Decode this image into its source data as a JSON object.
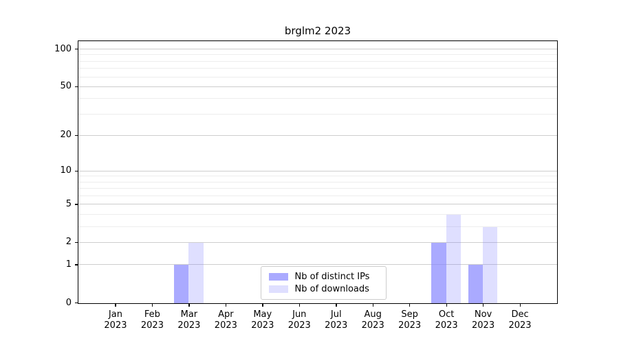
{
  "chart_data": {
    "type": "bar",
    "title": "brglm2 2023",
    "categories": [
      "Jan",
      "Feb",
      "Mar",
      "Apr",
      "May",
      "Jun",
      "Jul",
      "Aug",
      "Sep",
      "Oct",
      "Nov",
      "Dec"
    ],
    "category_year": "2023",
    "series": [
      {
        "name": "Nb of distinct IPs",
        "color": "rgba(128,128,255,0.67)",
        "color_hex": "#a6a6ff",
        "values": [
          0,
          0,
          1,
          0,
          0,
          0,
          0,
          0,
          0,
          2,
          1,
          0
        ]
      },
      {
        "name": "Nb of downloads",
        "color": "rgba(128,128,255,0.25)",
        "color_hex": "#dfdfff",
        "values": [
          0,
          0,
          2,
          0,
          0,
          0,
          0,
          0,
          0,
          4,
          3,
          0
        ]
      }
    ],
    "xlabel": "",
    "ylabel": "",
    "yscale": "log1p",
    "ylim": [
      0,
      115
    ],
    "yticks": [
      0,
      1,
      2,
      5,
      10,
      20,
      50,
      100
    ],
    "minor_yticks": [
      3,
      4,
      6,
      7,
      8,
      9,
      30,
      40,
      60,
      70,
      80,
      90
    ],
    "grid": true,
    "legend_position": "lower center"
  },
  "colors": {
    "major_grid": "#cdcdcd",
    "minor_grid": "#ededed",
    "spine": "#000000",
    "background": "#ffffff"
  }
}
